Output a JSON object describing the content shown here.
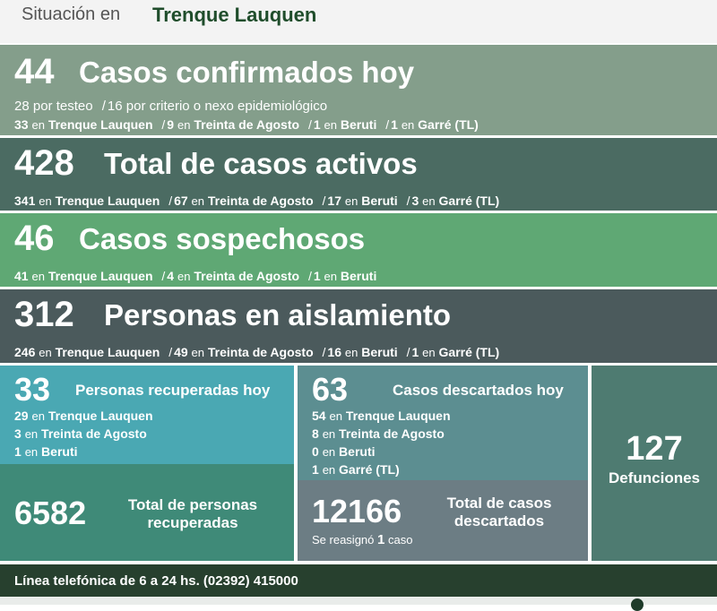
{
  "header": {
    "prefix": "Situación en",
    "city": "Trenque Lauquen"
  },
  "confirmed": {
    "count": "44",
    "title": "Casos confirmados hoy",
    "breakdown_test": "28",
    "breakdown_test_label": "por testeo",
    "breakdown_criteria": "16",
    "breakdown_criteria_label": "por criterio o nexo epidemiológico",
    "places": [
      {
        "n": "33",
        "en": "en",
        "name": "Trenque Lauquen"
      },
      {
        "n": "9",
        "en": "en",
        "name": "Treinta de Agosto"
      },
      {
        "n": "1",
        "en": "en",
        "name": "Beruti"
      },
      {
        "n": "1",
        "en": "en",
        "name": "Garré (TL)"
      }
    ]
  },
  "active": {
    "count": "428",
    "title": "Total de casos activos",
    "places": [
      {
        "n": "341",
        "en": "en",
        "name": "Trenque Lauquen"
      },
      {
        "n": "67",
        "en": "en",
        "name": "Treinta de Agosto"
      },
      {
        "n": "17",
        "en": "en",
        "name": "Beruti"
      },
      {
        "n": "3",
        "en": "en",
        "name": "Garré (TL)"
      }
    ]
  },
  "suspected": {
    "count": "46",
    "title": "Casos sospechosos",
    "places": [
      {
        "n": "41",
        "en": "en",
        "name": "Trenque Lauquen"
      },
      {
        "n": "4",
        "en": "en",
        "name": "Treinta de Agosto"
      },
      {
        "n": "1",
        "en": "en",
        "name": "Beruti"
      }
    ]
  },
  "isolation": {
    "count": "312",
    "title": "Personas en aislamiento",
    "places": [
      {
        "n": "246",
        "en": "en",
        "name": "Trenque Lauquen"
      },
      {
        "n": "49",
        "en": "en",
        "name": "Treinta de Agosto"
      },
      {
        "n": "16",
        "en": "en",
        "name": "Beruti"
      },
      {
        "n": "1",
        "en": "en",
        "name": "Garré (TL)"
      }
    ]
  },
  "recovered_today": {
    "count": "33",
    "title": "Personas recuperadas hoy",
    "places": [
      {
        "n": "29",
        "en": "en",
        "name": "Trenque Lauquen"
      },
      {
        "n": "3",
        "en": "en",
        "name": "Treinta de Agosto"
      },
      {
        "n": "1",
        "en": "en",
        "name": "Beruti"
      }
    ]
  },
  "recovered_total": {
    "count": "6582",
    "title_line1": "Total de personas",
    "title_line2": "recuperadas"
  },
  "discarded_today": {
    "count": "63",
    "title": "Casos descartados hoy",
    "places": [
      {
        "n": "54",
        "en": "en",
        "name": "Trenque Lauquen"
      },
      {
        "n": "8",
        "en": "en",
        "name": "Treinta de Agosto"
      },
      {
        "n": "0",
        "en": "en",
        "name": "Beruti"
      },
      {
        "n": "1",
        "en": "en",
        "name": "Garré (TL)"
      }
    ]
  },
  "discarded_total": {
    "count": "12166",
    "title_line1": "Total de casos",
    "title_line2": "descartados",
    "note_pre": "Se reasignó",
    "note_n": "1",
    "note_post": "caso"
  },
  "deaths": {
    "count": "127",
    "title": "Defunciones"
  },
  "footer": {
    "phone_line": "Línea telefónica de 6 a 24 hs. (02392) 415000"
  },
  "colors": {
    "confirmed": "#849e8b",
    "active": "#4b6b62",
    "suspected": "#5fa874",
    "isolation": "#4b5a5c",
    "recovered": "#4aa8b3",
    "recovered_total": "#3f8a78",
    "discarded": "#5c8e91",
    "discarded_total": "#6c7d84",
    "deaths": "#4e7b71",
    "footer": "#27402e",
    "city": "#1f4d2b"
  }
}
